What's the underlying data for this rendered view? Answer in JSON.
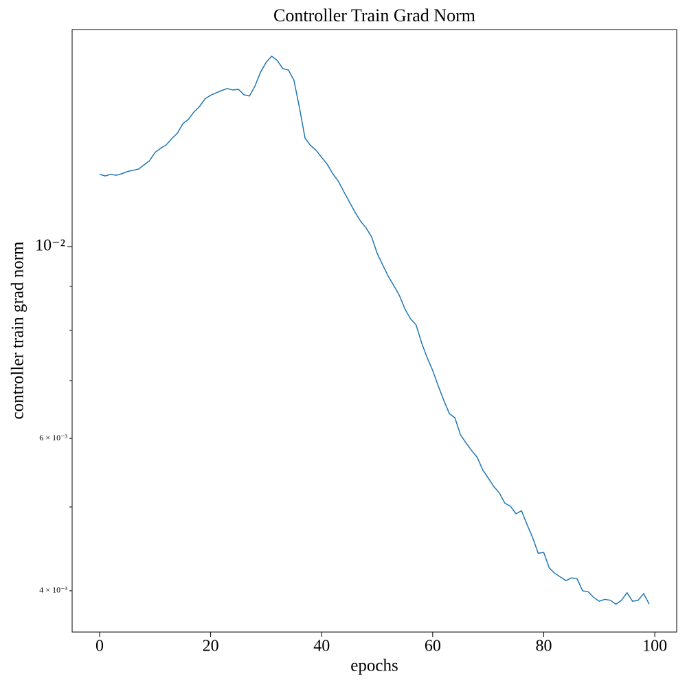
{
  "chart_data": {
    "type": "line",
    "title": "Controller Train Grad Norm",
    "xlabel": "epochs",
    "ylabel": "controller train grad norm",
    "color": "#1f77b4",
    "yscale": "log",
    "x": [
      0,
      1,
      2,
      3,
      4,
      5,
      6,
      7,
      8,
      9,
      10,
      11,
      12,
      13,
      14,
      15,
      16,
      17,
      18,
      19,
      20,
      21,
      22,
      23,
      24,
      25,
      26,
      27,
      28,
      29,
      30,
      31,
      32,
      33,
      34,
      35,
      36,
      37,
      38,
      39,
      40,
      41,
      42,
      43,
      44,
      45,
      46,
      47,
      48,
      49,
      50,
      51,
      52,
      53,
      54,
      55,
      56,
      57,
      58,
      59,
      60,
      61,
      62,
      63,
      64,
      65,
      66,
      67,
      68,
      69,
      70,
      71,
      72,
      73,
      74,
      75,
      76,
      77,
      78,
      79,
      80,
      81,
      82,
      83,
      84,
      85,
      86,
      87,
      88,
      89,
      90,
      91,
      92,
      93,
      94,
      95,
      96,
      97,
      98,
      99
    ],
    "values": [
      0.01212,
      0.01207,
      0.01212,
      0.01209,
      0.01214,
      0.01221,
      0.01225,
      0.01229,
      0.01243,
      0.01257,
      0.01285,
      0.01299,
      0.01311,
      0.01333,
      0.01352,
      0.01387,
      0.01403,
      0.01431,
      0.01452,
      0.01482,
      0.01496,
      0.01506,
      0.01515,
      0.01523,
      0.01517,
      0.0152,
      0.01498,
      0.01493,
      0.01534,
      0.01591,
      0.01633,
      0.0166,
      0.01641,
      0.01606,
      0.016,
      0.01557,
      0.01447,
      0.01335,
      0.01309,
      0.01292,
      0.01268,
      0.01245,
      0.01214,
      0.0119,
      0.01157,
      0.01126,
      0.01096,
      0.0107,
      0.01051,
      0.01026,
      0.00982,
      0.00952,
      0.00924,
      0.00901,
      0.00878,
      0.00847,
      0.00825,
      0.00812,
      0.00774,
      0.00744,
      0.00719,
      0.0069,
      0.00664,
      0.00641,
      0.00634,
      0.00606,
      0.00593,
      0.00581,
      0.00571,
      0.00552,
      0.0054,
      0.00528,
      0.00519,
      0.00505,
      0.00501,
      0.00491,
      0.00495,
      0.00477,
      0.00461,
      0.00442,
      0.00443,
      0.00425,
      0.00419,
      0.00415,
      0.00411,
      0.00414,
      0.00413,
      0.004,
      0.00399,
      0.00393,
      0.00389,
      0.00391,
      0.0039,
      0.00386,
      0.0039,
      0.00398,
      0.00389,
      0.0039,
      0.00397,
      0.00386
    ],
    "xlim": [
      -4.95,
      103.95
    ],
    "xticks": [
      0,
      20,
      40,
      60,
      80,
      100
    ],
    "ylim": [
      0.003584,
      0.01782
    ],
    "yticks": [
      {
        "value": 0.01,
        "label": "10⁻²"
      },
      {
        "value": 0.006,
        "label": "6 × 10⁻³"
      },
      {
        "value": 0.004,
        "label": "4 × 10⁻³"
      }
    ],
    "yminorticks": [
      0.005,
      0.007,
      0.008,
      0.009
    ]
  }
}
